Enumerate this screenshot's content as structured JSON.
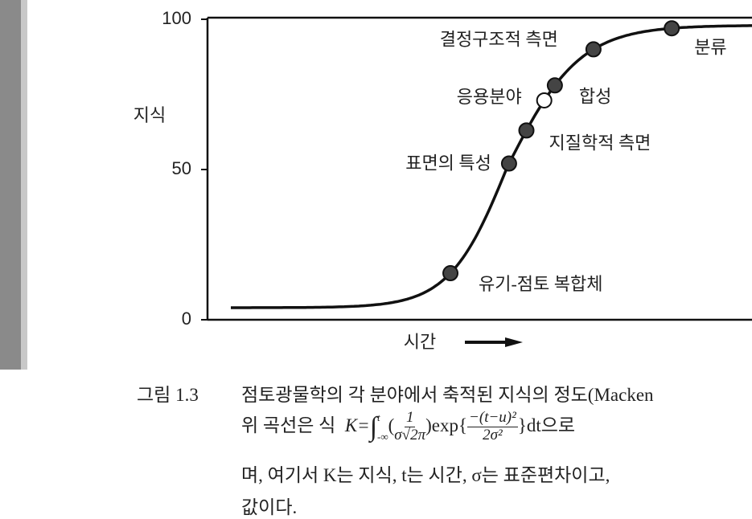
{
  "chart_data": {
    "type": "scatter",
    "y_label": "지식",
    "x_label": "시간",
    "ylim": [
      0,
      100
    ],
    "yticks": [
      0,
      50,
      100
    ],
    "points": [
      {
        "label": "유기-점토 복합체",
        "value": 15.5,
        "hollow": false
      },
      {
        "label": "표면의 특성",
        "value": 52,
        "hollow": false
      },
      {
        "label": "지질학적 측면",
        "value": 63,
        "hollow": false
      },
      {
        "label": "응용분야",
        "value": 73,
        "hollow": true
      },
      {
        "label": "합성",
        "value": 78,
        "hollow": false
      },
      {
        "label": "결정구조적 측면",
        "value": 90,
        "hollow": false
      },
      {
        "label": "분류",
        "value": 97,
        "hollow": false
      }
    ]
  },
  "caption": {
    "figure": "그림 1.3",
    "line1": "점토광물학의 각 분야에서 축적된 지식의 정도(Macken",
    "line2_start": "위 곡선은 식",
    "eq_k": "K=",
    "eq_int": "∫",
    "eq_lower": "-∞",
    "eq_upper": "t",
    "eq_open": "(",
    "eq_num1": "1",
    "eq_den1": "σ√2π",
    "eq_exp": ")exp{",
    "eq_num2": "−(t−u)²",
    "eq_den2": "2σ²",
    "eq_end": "}dt으로",
    "line3": "며, 여기서 K는 지식, t는 시간, σ는 표준편차이고,",
    "line4": "값이다."
  }
}
